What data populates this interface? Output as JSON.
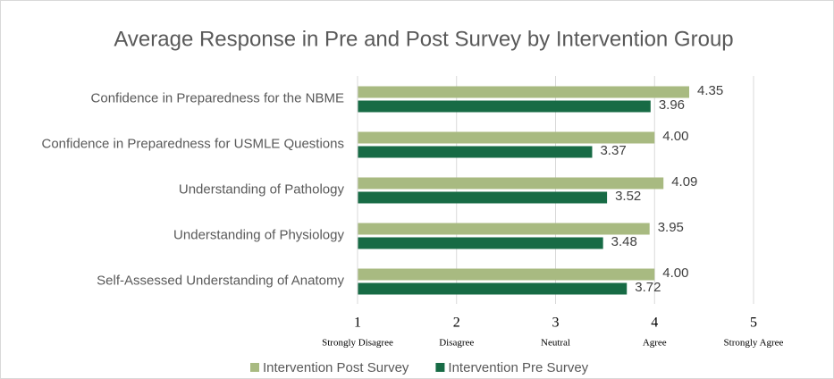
{
  "chart_data": {
    "type": "bar",
    "orientation": "horizontal",
    "title": "Average Response in Pre and Post Survey by Intervention Group",
    "categories": [
      "Confidence in Preparedness for the NBME",
      "Confidence in Preparedness for USMLE Questions",
      "Understanding of Pathology",
      "Understanding of Physiology",
      "Self-Assessed Understanding of Anatomy"
    ],
    "series": [
      {
        "name": "Intervention Post Survey",
        "color": "#a8ba81",
        "values": [
          4.35,
          4.0,
          4.09,
          3.95,
          4.0
        ],
        "value_labels": [
          "4.35",
          "4.00",
          "4.09",
          "3.95",
          "4.00"
        ]
      },
      {
        "name": "Intervention Pre Survey",
        "color": "#176b45",
        "values": [
          3.96,
          3.37,
          3.52,
          3.48,
          3.72
        ],
        "value_labels": [
          "3.96",
          "3.37",
          "3.52",
          "3.48",
          "3.72"
        ]
      }
    ],
    "xlim": [
      1,
      5
    ],
    "xticks": [
      1,
      2,
      3,
      4,
      5
    ],
    "xtick_descriptions": [
      "Strongly Disagree",
      "Disagree",
      "Neutral",
      "Agree",
      "Strongly Agree"
    ],
    "grid": true,
    "legend": "bottom"
  }
}
